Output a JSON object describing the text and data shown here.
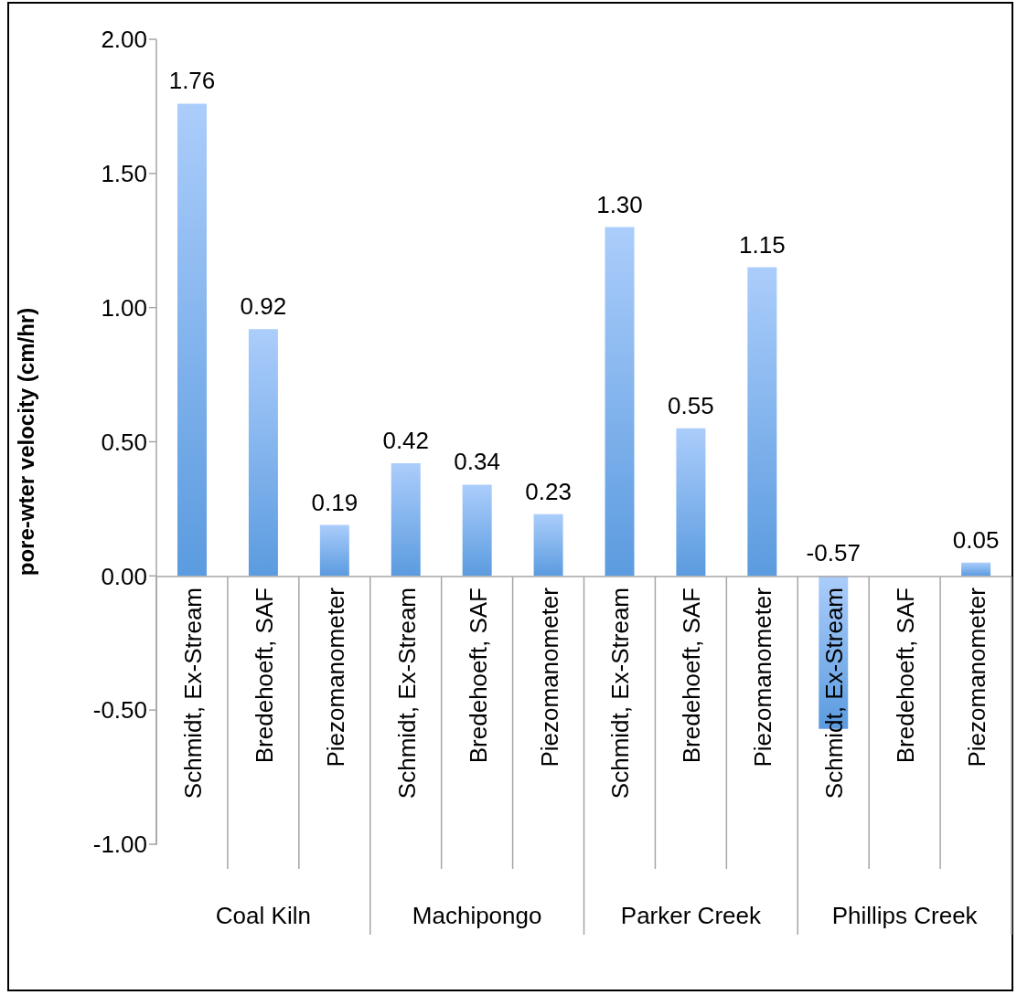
{
  "chart_data": {
    "type": "bar",
    "ylabel": "pore-wter velocity (cm/hr)",
    "categories": [
      "Schmidt, Ex-Stream",
      "Bredehoeft, SAF",
      "Piezomanometer",
      "Schmidt, Ex-Stream",
      "Bredehoeft, SAF",
      "Piezomanometer",
      "Schmidt, Ex-Stream",
      "Bredehoeft, SAF",
      "Piezomanometer",
      "Schmidt, Ex-Stream",
      "Bredehoeft, SAF",
      "Piezomanometer"
    ],
    "annotations": [
      "Coal Kiln",
      "Machipongo",
      "Parker Creek",
      "Phillips Creek"
    ],
    "values": [
      1.76,
      0.92,
      0.19,
      0.42,
      0.34,
      0.23,
      1.3,
      0.55,
      1.15,
      -0.57,
      null,
      0.05
    ],
    "value_labels": [
      "1.76",
      "0.92",
      "0.19",
      "0.42",
      "0.34",
      "0.23",
      "1.30",
      "0.55",
      "1.15",
      "-0.57",
      null,
      "0.05"
    ],
    "color": "#5b9bdf",
    "ylim": [
      -1,
      2
    ],
    "yticks": [
      {
        "value": -1,
        "label": "-1.00"
      },
      {
        "value": -0.5,
        "label": "-0.50"
      },
      {
        "value": 0,
        "label": "0.00"
      },
      {
        "value": 0.5,
        "label": "0.50"
      },
      {
        "value": 1,
        "label": "1.00"
      },
      {
        "value": 1.5,
        "label": "1.50"
      },
      {
        "value": 2,
        "label": "2.00"
      }
    ],
    "grid": false,
    "legend": false
  }
}
